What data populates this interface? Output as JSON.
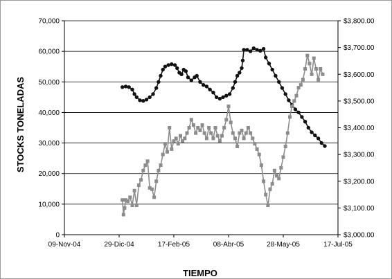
{
  "chart_data": {
    "type": "line",
    "title": "",
    "xlabel": "TIEMPO",
    "ylabel": "STOCKS  TONELADAS",
    "y2label": "",
    "xlim": [
      "2004-11-09",
      "2005-07-17"
    ],
    "x_ticks": [
      "09-Nov-04",
      "29-Dic-04",
      "17-Feb-05",
      "08-Abr-05",
      "28-May-05",
      "17-Jul-05"
    ],
    "ylim": [
      0,
      70000
    ],
    "y_ticks": [
      "0",
      "10,000",
      "20,000",
      "30,000",
      "40,000",
      "50,000",
      "60,000",
      "70,000"
    ],
    "y2lim": [
      3000,
      3800
    ],
    "y2_ticks": [
      "$3,000.00",
      "$3,100.00",
      "$3,200.00",
      "$3,300.00",
      "$3,400.00",
      "$3,500.00",
      "$3,600.00",
      "$3,700.00",
      "$3,800.00"
    ],
    "grid": "horizontal",
    "legend": "none",
    "series": [
      {
        "axis": "left",
        "color": "#111111",
        "marker": "circle",
        "points": [
          [
            "2005-01-01",
            48300
          ],
          [
            "2005-01-04",
            48500
          ],
          [
            "2005-01-07",
            48300
          ],
          [
            "2005-01-10",
            47500
          ],
          [
            "2005-01-12",
            46000
          ],
          [
            "2005-01-14",
            45000
          ],
          [
            "2005-01-17",
            44000
          ],
          [
            "2005-01-20",
            43800
          ],
          [
            "2005-01-23",
            44200
          ],
          [
            "2005-01-26",
            45000
          ],
          [
            "2005-01-29",
            46000
          ],
          [
            "2005-02-01",
            48000
          ],
          [
            "2005-02-03",
            50000
          ],
          [
            "2005-02-05",
            52000
          ],
          [
            "2005-02-07",
            54000
          ],
          [
            "2005-02-09",
            55000
          ],
          [
            "2005-02-12",
            55500
          ],
          [
            "2005-02-15",
            55800
          ],
          [
            "2005-02-18",
            55500
          ],
          [
            "2005-02-20",
            54500
          ],
          [
            "2005-02-22",
            53000
          ],
          [
            "2005-02-24",
            52500
          ],
          [
            "2005-02-26",
            54000
          ],
          [
            "2005-02-28",
            53500
          ],
          [
            "2005-03-02",
            51500
          ],
          [
            "2005-03-05",
            50500
          ],
          [
            "2005-03-08",
            51500
          ],
          [
            "2005-03-10",
            52000
          ],
          [
            "2005-03-13",
            50000
          ],
          [
            "2005-03-16",
            49000
          ],
          [
            "2005-03-19",
            48500
          ],
          [
            "2005-03-22",
            47500
          ],
          [
            "2005-03-25",
            46500
          ],
          [
            "2005-03-28",
            45000
          ],
          [
            "2005-03-31",
            44500
          ],
          [
            "2005-04-03",
            45000
          ],
          [
            "2005-04-06",
            45500
          ],
          [
            "2005-04-09",
            46000
          ],
          [
            "2005-04-12",
            48000
          ],
          [
            "2005-04-14",
            50000
          ],
          [
            "2005-04-16",
            52000
          ],
          [
            "2005-04-18",
            53000
          ],
          [
            "2005-04-20",
            54500
          ],
          [
            "2005-04-21",
            57000
          ],
          [
            "2005-04-22",
            60500
          ],
          [
            "2005-04-25",
            60500
          ],
          [
            "2005-04-28",
            60000
          ],
          [
            "2005-05-01",
            61000
          ],
          [
            "2005-05-04",
            60500
          ],
          [
            "2005-05-07",
            60200
          ],
          [
            "2005-05-10",
            60800
          ],
          [
            "2005-05-12",
            58000
          ],
          [
            "2005-05-15",
            56000
          ],
          [
            "2005-05-18",
            54000
          ],
          [
            "2005-05-21",
            52000
          ],
          [
            "2005-05-24",
            50000
          ],
          [
            "2005-05-27",
            48000
          ],
          [
            "2005-05-30",
            46000
          ],
          [
            "2005-06-02",
            44000
          ],
          [
            "2005-06-05",
            42500
          ],
          [
            "2005-06-08",
            41000
          ],
          [
            "2005-06-11",
            40000
          ],
          [
            "2005-06-14",
            38500
          ],
          [
            "2005-06-17",
            37000
          ],
          [
            "2005-06-20",
            35000
          ],
          [
            "2005-06-23",
            33500
          ],
          [
            "2005-06-26",
            32500
          ],
          [
            "2005-06-29",
            31500
          ],
          [
            "2005-07-02",
            30000
          ],
          [
            "2005-07-05",
            29000
          ]
        ]
      },
      {
        "axis": "right",
        "color": "#8c8c8c",
        "marker": "square",
        "points": [
          [
            "2005-01-01",
            3130
          ],
          [
            "2005-01-02",
            3075
          ],
          [
            "2005-01-03",
            3100
          ],
          [
            "2005-01-04",
            3130
          ],
          [
            "2005-01-06",
            3125
          ],
          [
            "2005-01-08",
            3140
          ],
          [
            "2005-01-10",
            3110
          ],
          [
            "2005-01-12",
            3165
          ],
          [
            "2005-01-14",
            3110
          ],
          [
            "2005-01-16",
            3185
          ],
          [
            "2005-01-18",
            3205
          ],
          [
            "2005-01-20",
            3240
          ],
          [
            "2005-01-22",
            3260
          ],
          [
            "2005-01-24",
            3275
          ],
          [
            "2005-01-26",
            3175
          ],
          [
            "2005-01-28",
            3170
          ],
          [
            "2005-01-30",
            3140
          ],
          [
            "2005-02-01",
            3200
          ],
          [
            "2005-02-03",
            3240
          ],
          [
            "2005-02-05",
            3260
          ],
          [
            "2005-02-07",
            3300
          ],
          [
            "2005-02-09",
            3340
          ],
          [
            "2005-02-11",
            3310
          ],
          [
            "2005-02-13",
            3400
          ],
          [
            "2005-02-15",
            3320
          ],
          [
            "2005-02-17",
            3350
          ],
          [
            "2005-02-19",
            3360
          ],
          [
            "2005-02-21",
            3340
          ],
          [
            "2005-02-23",
            3370
          ],
          [
            "2005-02-25",
            3350
          ],
          [
            "2005-02-27",
            3360
          ],
          [
            "2005-03-01",
            3380
          ],
          [
            "2005-03-03",
            3400
          ],
          [
            "2005-03-05",
            3430
          ],
          [
            "2005-03-07",
            3410
          ],
          [
            "2005-03-09",
            3380
          ],
          [
            "2005-03-11",
            3400
          ],
          [
            "2005-03-13",
            3390
          ],
          [
            "2005-03-15",
            3410
          ],
          [
            "2005-03-17",
            3380
          ],
          [
            "2005-03-19",
            3360
          ],
          [
            "2005-03-21",
            3400
          ],
          [
            "2005-03-23",
            3380
          ],
          [
            "2005-03-25",
            3360
          ],
          [
            "2005-03-27",
            3400
          ],
          [
            "2005-03-29",
            3370
          ],
          [
            "2005-03-31",
            3350
          ],
          [
            "2005-04-02",
            3370
          ],
          [
            "2005-04-04",
            3400
          ],
          [
            "2005-04-06",
            3430
          ],
          [
            "2005-04-08",
            3480
          ],
          [
            "2005-04-10",
            3420
          ],
          [
            "2005-04-12",
            3380
          ],
          [
            "2005-04-14",
            3360
          ],
          [
            "2005-04-16",
            3330
          ],
          [
            "2005-04-18",
            3380
          ],
          [
            "2005-04-20",
            3390
          ],
          [
            "2005-04-22",
            3360
          ],
          [
            "2005-04-24",
            3380
          ],
          [
            "2005-04-26",
            3400
          ],
          [
            "2005-04-28",
            3380
          ],
          [
            "2005-04-30",
            3360
          ],
          [
            "2005-05-02",
            3340
          ],
          [
            "2005-05-04",
            3320
          ],
          [
            "2005-05-06",
            3300
          ],
          [
            "2005-05-08",
            3260
          ],
          [
            "2005-05-10",
            3200
          ],
          [
            "2005-05-12",
            3150
          ],
          [
            "2005-05-14",
            3110
          ],
          [
            "2005-05-16",
            3170
          ],
          [
            "2005-05-18",
            3190
          ],
          [
            "2005-05-20",
            3240
          ],
          [
            "2005-05-22",
            3220
          ],
          [
            "2005-05-24",
            3210
          ],
          [
            "2005-05-26",
            3250
          ],
          [
            "2005-05-28",
            3290
          ],
          [
            "2005-05-30",
            3330
          ],
          [
            "2005-06-01",
            3380
          ],
          [
            "2005-06-03",
            3440
          ],
          [
            "2005-06-05",
            3480
          ],
          [
            "2005-06-07",
            3500
          ],
          [
            "2005-06-09",
            3520
          ],
          [
            "2005-06-11",
            3550
          ],
          [
            "2005-06-13",
            3560
          ],
          [
            "2005-06-15",
            3580
          ],
          [
            "2005-06-17",
            3620
          ],
          [
            "2005-06-19",
            3670
          ],
          [
            "2005-06-21",
            3640
          ],
          [
            "2005-06-23",
            3600
          ],
          [
            "2005-06-25",
            3660
          ],
          [
            "2005-06-27",
            3620
          ],
          [
            "2005-06-29",
            3580
          ],
          [
            "2005-07-01",
            3620
          ],
          [
            "2005-07-03",
            3600
          ]
        ]
      }
    ]
  }
}
